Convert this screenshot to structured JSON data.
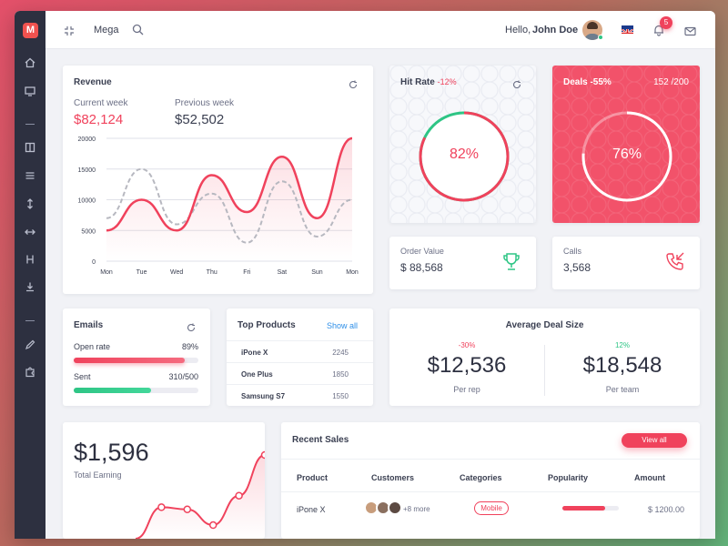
{
  "app": {
    "logo_letter": "M"
  },
  "sidebar": {
    "items": [
      "home-icon",
      "monitor-icon",
      "columns-icon",
      "menu-icon",
      "vertical-arrows-icon",
      "horizontal-arrows-icon",
      "layout-icon",
      "download-icon",
      "pencil-icon",
      "puzzle-icon"
    ]
  },
  "topbar": {
    "menu_label": "Mega",
    "greeting": "Hello,",
    "user_name": "John Doe",
    "notification_count": "5"
  },
  "revenue": {
    "title": "Revenue",
    "current_label": "Current week",
    "current_value": "$82,124",
    "previous_label": "Previous week",
    "previous_value": "$52,502"
  },
  "hit_rate": {
    "title": "Hit Rate",
    "delta": "-12%",
    "value": "82%",
    "percent": 82
  },
  "deals": {
    "title": "Deals -55%",
    "count": "152 /200",
    "value": "76%",
    "percent": 76
  },
  "order_value": {
    "label": "Order Value",
    "value": "$ 88,568"
  },
  "calls": {
    "label": "Calls",
    "value": "3,568"
  },
  "emails": {
    "title": "Emails",
    "open_rate_label": "Open rate",
    "open_rate_value": "89%",
    "open_rate_fraction": 0.89,
    "sent_label": "Sent",
    "sent_value": "310/500",
    "sent_fraction": 0.62
  },
  "top_products": {
    "title": "Top Products",
    "show_all": "Show all",
    "rows": [
      {
        "name": "iPone X",
        "value": "2245"
      },
      {
        "name": "One Plus",
        "value": "1850"
      },
      {
        "name": "Samsung S7",
        "value": "1550"
      }
    ]
  },
  "average_deal": {
    "title": "Average Deal Size",
    "left": {
      "delta": "-30%",
      "value": "$12,536",
      "label": "Per rep"
    },
    "right": {
      "delta": "12%",
      "value": "$18,548",
      "label": "Per team"
    }
  },
  "earning": {
    "value": "$1,596",
    "label": "Total Earning"
  },
  "recent_sales": {
    "title": "Recent Sales",
    "view_all": "View all",
    "headers": [
      "Product",
      "Customers",
      "Categories",
      "Popularity",
      "Amount"
    ],
    "rows": [
      {
        "product": "iPone X",
        "customers_more": "+8 more",
        "category": "Mobile",
        "popularity": 0.75,
        "amount": "$ 1200.00"
      }
    ]
  },
  "colors": {
    "accent": "#f0425c",
    "green": "#2ec585",
    "sidebar": "#2d3040"
  },
  "chart_data": [
    {
      "type": "line",
      "categories": [
        "Mon",
        "Tue",
        "Wed",
        "Thu",
        "Fri",
        "Sat",
        "Sun",
        "Mon"
      ],
      "yticks": [
        "20000",
        "15000",
        "10000",
        "5000",
        "0"
      ],
      "ylim": [
        0,
        20000
      ],
      "grid": true,
      "series": [
        {
          "values": [
            5000,
            10000,
            5000,
            14000,
            8000,
            17000,
            7000,
            20000
          ],
          "color": "#f0425c"
        },
        {
          "values": [
            7000,
            15000,
            6000,
            11000,
            3000,
            13000,
            4000,
            10000
          ],
          "color": "#b7b8c0",
          "dashed": true
        }
      ]
    },
    {
      "type": "line",
      "title": "",
      "series": [
        {
          "values": [
            0,
            600,
            560,
            260,
            820,
            1596
          ]
        }
      ]
    }
  ]
}
